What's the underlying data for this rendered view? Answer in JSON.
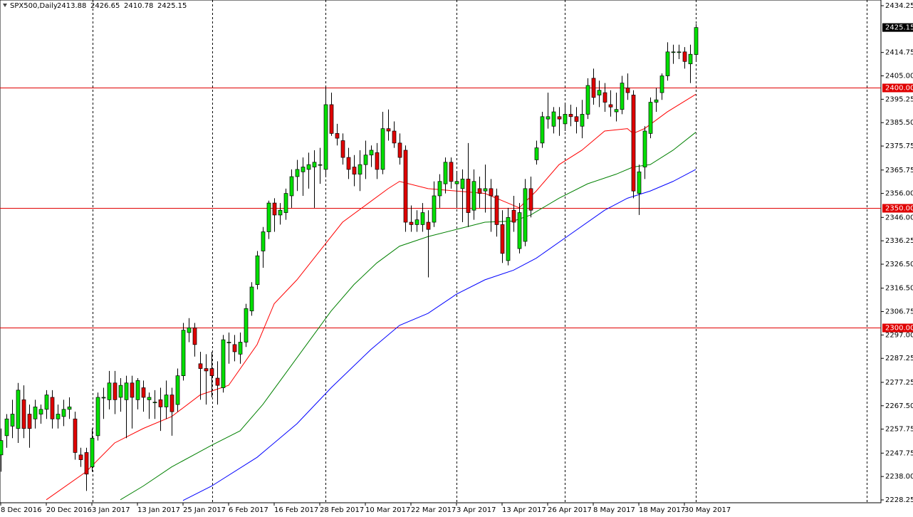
{
  "chart_data": {
    "type": "candlestick",
    "title": "SPX500,Daily",
    "up_color": "#00e000",
    "down_color": "#e00000",
    "ylim": [
      2227.06,
      2436.62
    ],
    "yticks": [
      2434.25,
      2414.75,
      {
        "value": 2405,
        "label": "2405.00"
      },
      2395.25,
      {
        "value": 2385.5,
        "label": "2385.50"
      },
      2375.75,
      2365.75,
      {
        "value": 2356,
        "label": "2356.00"
      },
      {
        "value": 2346,
        "label": "2346.00"
      },
      2336.25,
      {
        "value": 2326.5,
        "label": "2326.50"
      },
      {
        "value": 2316.5,
        "label": "2316.50"
      },
      2306.75,
      {
        "value": 2297,
        "label": "2297.00"
      },
      2287.25,
      2277.25,
      {
        "value": 2267.5,
        "label": "2267.50"
      },
      2257.75,
      2247.75,
      {
        "value": 2238,
        "label": "2238.00"
      },
      2228.25
    ],
    "x_labels": [
      {
        "index": 0,
        "label": "8 Dec 2016"
      },
      {
        "index": 8,
        "label": "20 Dec 2016"
      },
      {
        "index": 16,
        "label": "3 Jan 2017"
      },
      {
        "index": 24,
        "label": "13 Jan 2017"
      },
      {
        "index": 32,
        "label": "25 Jan 2017"
      },
      {
        "index": 40,
        "label": "6 Feb 2017"
      },
      {
        "index": 48,
        "label": "16 Feb 2017"
      },
      {
        "index": 56,
        "label": "28 Feb 2017"
      },
      {
        "index": 64,
        "label": "10 Mar 2017"
      },
      {
        "index": 72,
        "label": "22 Mar 2017"
      },
      {
        "index": 80,
        "label": "3 Apr 2017"
      },
      {
        "index": 88,
        "label": "13 Apr 2017"
      },
      {
        "index": 96,
        "label": "26 Apr 2017"
      },
      {
        "index": 104,
        "label": "8 May 2017"
      },
      {
        "index": 112,
        "label": "18 May 2017"
      },
      {
        "index": 120,
        "label": "30 May 2017"
      }
    ],
    "levels": [
      {
        "value": 2400,
        "label": "2400.00",
        "color": "#e00000"
      },
      {
        "value": 2350,
        "label": "2350.00",
        "color": "#e00000"
      },
      {
        "value": 2300,
        "label": "2300.00",
        "color": "#e00000"
      }
    ],
    "last_price": 2425.15,
    "open": [
      2247,
      2255,
      2259,
      2258,
      2270,
      2264,
      2262,
      2264,
      2266,
      2271,
      2262,
      2263,
      2266,
      2262,
      2247,
      2248,
      2242,
      2255,
      2271,
      2270,
      2277,
      2271,
      2270,
      2277,
      2270,
      2275,
      2270,
      2269,
      2270,
      2267,
      2272,
      2268,
      2280,
      2298,
      2300,
      2285,
      2283,
      2283,
      2279,
      2275,
      2294,
      2293,
      2289,
      2294,
      2307,
      2318,
      2332,
      2340,
      2352,
      2347,
      2348,
      2355,
      2363,
      2365,
      2366,
      2367,
      2368,
      2366,
      2393,
      2381,
      2378,
      2371,
      2367,
      2364,
      2368,
      2372,
      2373,
      2366,
      2383,
      2382,
      2377,
      2374,
      2344,
      2343,
      2343,
      2344,
      2344,
      2355,
      2360,
      2369,
      2360,
      2358,
      2362,
      2349,
      2358,
      2357,
      2358,
      2355,
      2343,
      2328,
      2349,
      2333,
      2336,
      2358,
      2370,
      2377,
      2387,
      2384,
      2388,
      2385,
      2389,
      2388,
      2384,
      2389,
      2404,
      2397,
      2398,
      2393,
      2390,
      2391,
      2400,
      2397,
      2356,
      2367,
      2381,
      2394,
      2398,
      2405,
      2415,
      2415,
      2415,
      2410,
      2413.88
    ],
    "high": [
      2258,
      2264,
      2270,
      2277,
      2276,
      2268,
      2270,
      2268,
      2274,
      2274,
      2268,
      2270,
      2271,
      2265,
      2250,
      2250,
      2258,
      2273,
      2275,
      2282,
      2282,
      2279,
      2280,
      2280,
      2279,
      2278,
      2273,
      2274,
      2275,
      2278,
      2275,
      2283,
      2302,
      2304,
      2302,
      2290,
      2289,
      2290,
      2286,
      2297,
      2298,
      2297,
      2298,
      2310,
      2319,
      2332,
      2342,
      2353,
      2354,
      2352,
      2358,
      2366,
      2370,
      2371,
      2373,
      2374,
      2375,
      2400.5,
      2398,
      2385,
      2381,
      2375,
      2372,
      2374,
      2378,
      2376,
      2377,
      2390,
      2391,
      2386,
      2381,
      2376,
      2351,
      2349,
      2352,
      2349,
      2361,
      2364,
      2371,
      2371,
      2365,
      2366,
      2377,
      2366,
      2363,
      2368,
      2362,
      2358,
      2349,
      2350,
      2355,
      2352,
      2362,
      2363,
      2378,
      2390,
      2398,
      2392,
      2392,
      2393,
      2393,
      2392,
      2395,
      2404,
      2408,
      2403,
      2402,
      2399,
      2398,
      2405,
      2406,
      2399,
      2368,
      2384,
      2396,
      2400,
      2406,
      2419,
      2418,
      2418,
      2417,
      2418,
      2426.65
    ],
    "low": [
      2240,
      2250,
      2254,
      2252,
      2254,
      2250,
      2258,
      2260,
      2262,
      2258,
      2258,
      2259,
      2262,
      2245,
      2242,
      2232,
      2240,
      2253,
      2262,
      2266,
      2264,
      2265,
      2254,
      2258,
      2266,
      2265,
      2262,
      2262,
      2257,
      2262,
      2255,
      2265,
      2278,
      2294,
      2288,
      2270,
      2268,
      2271,
      2268,
      2273,
      2285,
      2286,
      2285,
      2292,
      2305,
      2316,
      2325,
      2337,
      2340,
      2343,
      2345,
      2350,
      2357,
      2355,
      2358,
      2350,
      2360,
      2363,
      2380,
      2376,
      2368,
      2362,
      2359,
      2357,
      2362,
      2367,
      2362,
      2364,
      2378,
      2375,
      2368,
      2340,
      2340,
      2340,
      2340,
      2321,
      2342,
      2350,
      2356,
      2358,
      2350,
      2344,
      2342,
      2345,
      2350,
      2348,
      2340,
      2338,
      2327,
      2326,
      2340,
      2331,
      2334,
      2346,
      2368,
      2375,
      2383,
      2381,
      2380,
      2382,
      2384,
      2381,
      2379,
      2387,
      2393,
      2392,
      2390,
      2388,
      2386,
      2389,
      2395,
      2354,
      2347,
      2362,
      2379,
      2390,
      2395,
      2403,
      2410,
      2412,
      2408,
      2402,
      2410.78
    ],
    "close": [
      2253,
      2262,
      2264,
      2274,
      2258,
      2258,
      2267,
      2266,
      2272,
      2262,
      2264,
      2266,
      2267,
      2248,
      2245,
      2239,
      2254,
      2271,
      2271,
      2277,
      2270,
      2276,
      2277,
      2271,
      2278,
      2271,
      2271,
      2269,
      2267,
      2272,
      2265,
      2280,
      2299,
      2300,
      2293,
      2283,
      2282,
      2280,
      2276,
      2295,
      2294,
      2290,
      2294,
      2308,
      2317,
      2330,
      2340,
      2352,
      2347,
      2349,
      2356,
      2363,
      2366,
      2367,
      2368,
      2369,
      2368,
      2393,
      2381,
      2379,
      2371,
      2366,
      2364,
      2368,
      2372,
      2374,
      2366,
      2383,
      2382,
      2377,
      2371,
      2344,
      2343,
      2345,
      2348,
      2341,
      2355,
      2361,
      2369,
      2361,
      2361,
      2362,
      2348,
      2361,
      2356,
      2358,
      2355,
      2343,
      2331,
      2346,
      2344,
      2348,
      2358,
      2349,
      2375,
      2388,
      2388,
      2390,
      2387,
      2389,
      2388,
      2386,
      2389,
      2401,
      2396,
      2399,
      2394,
      2392,
      2391,
      2402,
      2398,
      2357,
      2365,
      2382,
      2394,
      2395,
      2405,
      2415,
      2415,
      2415,
      2411,
      2414,
      2425.15
    ],
    "ma": [
      {
        "color": "#ff0000",
        "index": [
          8,
          15,
          20,
          25,
          30,
          35,
          40,
          45,
          48,
          52,
          57,
          60,
          64,
          68,
          70,
          75,
          80,
          85,
          88,
          91,
          94,
          98,
          102,
          106,
          110,
          111,
          113,
          117,
          122
        ],
        "values": [
          2228.3,
          2240,
          2252,
          2258,
          2263,
          2272,
          2276,
          2293,
          2310,
          2320,
          2335,
          2344,
          2351,
          2358,
          2361,
          2358,
          2357,
          2356,
          2353,
          2350,
          2357,
          2368,
          2374,
          2382,
          2383,
          2381,
          2383,
          2390,
          2397.3
        ]
      },
      {
        "color": "#008000",
        "index": [
          21,
          25,
          30,
          37,
          42,
          46,
          50,
          54,
          58,
          62,
          66,
          70,
          75,
          80,
          85,
          90,
          93,
          98,
          103,
          108,
          111,
          114,
          118,
          122
        ],
        "values": [
          2228.3,
          2234,
          2242,
          2251,
          2257,
          2268,
          2281,
          2294,
          2307,
          2318,
          2327,
          2334,
          2338,
          2341,
          2344,
          2344.5,
          2347,
          2354,
          2360,
          2364,
          2367,
          2368,
          2374,
          2381.5
        ]
      },
      {
        "color": "#0000ff",
        "index": [
          32,
          37,
          45,
          52,
          58,
          65,
          70,
          75,
          80,
          85,
          90,
          94,
          100,
          106,
          110,
          114,
          118,
          122
        ],
        "values": [
          2228,
          2234,
          2246,
          2260,
          2275,
          2291,
          2301,
          2306,
          2314,
          2320,
          2324,
          2329,
          2339,
          2349,
          2354,
          2357,
          2361,
          2366
        ]
      }
    ]
  }
}
